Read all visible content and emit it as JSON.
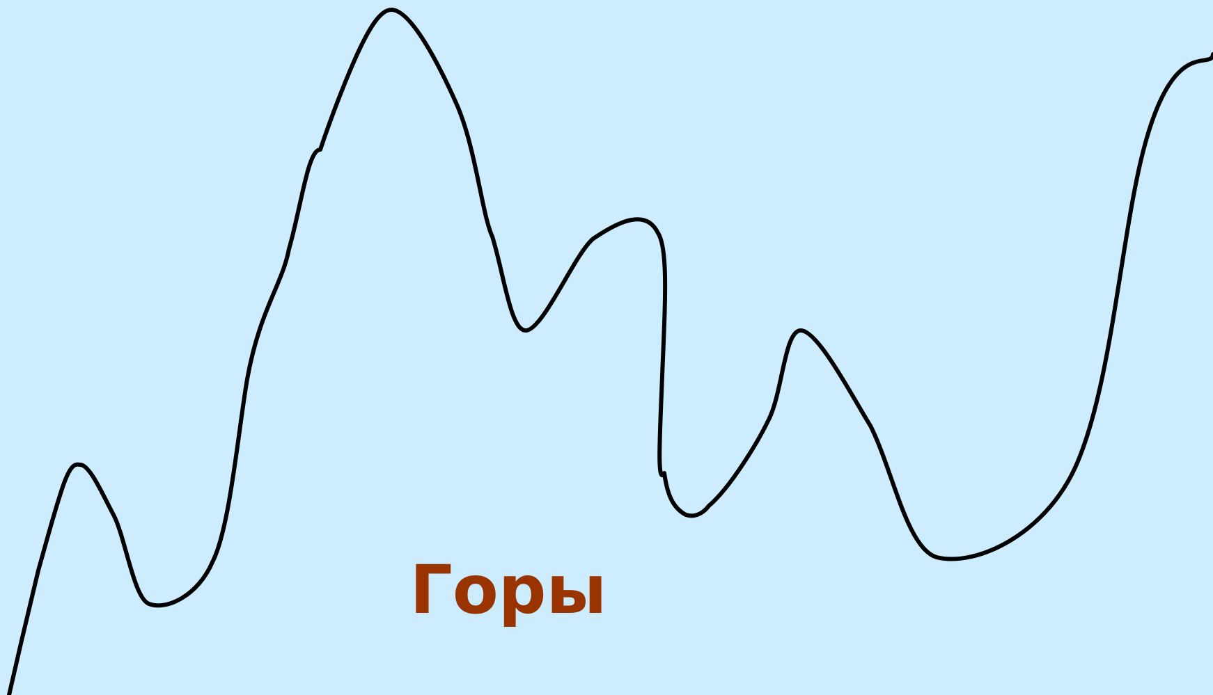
{
  "caption": {
    "text": "Горы",
    "color": "#993300"
  },
  "colors": {
    "background": "#cdecfe",
    "outline": "#000000"
  }
}
